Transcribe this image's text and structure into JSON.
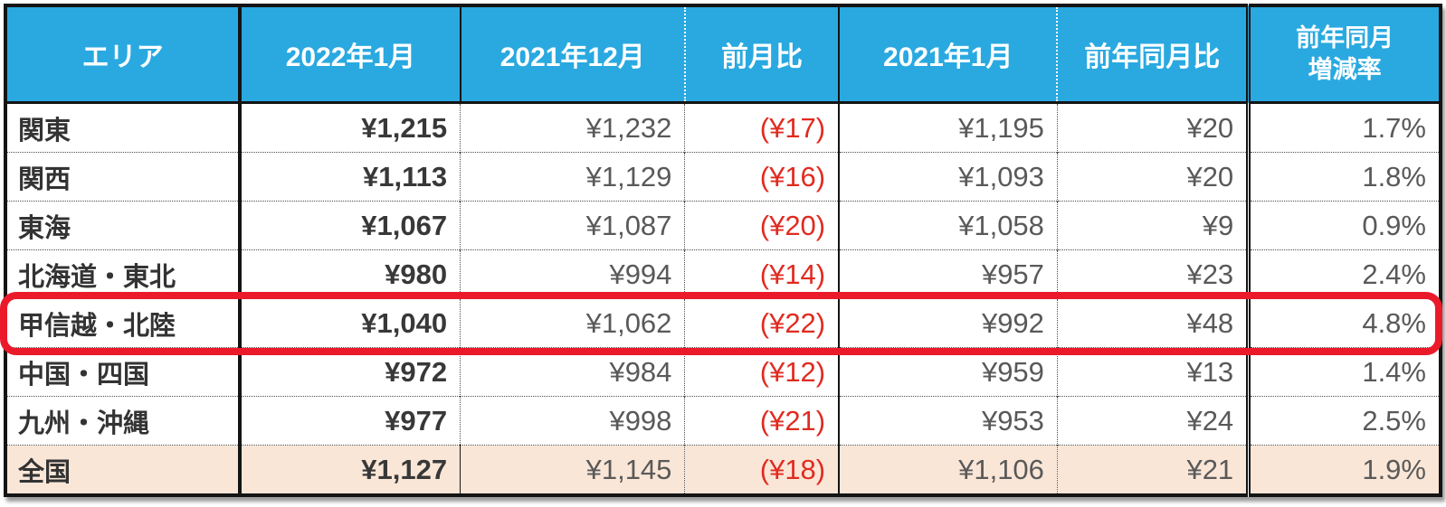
{
  "chart_data": {
    "type": "table",
    "title": "",
    "columns": [
      {
        "id": "area",
        "label": "エリア"
      },
      {
        "id": "jan-2022",
        "label": "2022年1月"
      },
      {
        "id": "dec-2021",
        "label": "2021年12月"
      },
      {
        "id": "mom-diff",
        "label": "前月比"
      },
      {
        "id": "jan-2021",
        "label": "2021年1月"
      },
      {
        "id": "yoy-diff",
        "label": "前年同月比"
      },
      {
        "id": "yoy-rate",
        "label": "前年同月増減率",
        "lines": [
          "前年同月",
          "増減率"
        ]
      }
    ],
    "rows": [
      {
        "cells": [
          "関東",
          "¥1,215",
          "¥1,232",
          "(¥17)",
          "¥1,195",
          "¥20",
          "1.7%"
        ],
        "is_total": false,
        "is_highlighted": false
      },
      {
        "cells": [
          "関西",
          "¥1,113",
          "¥1,129",
          "(¥16)",
          "¥1,093",
          "¥20",
          "1.8%"
        ],
        "is_total": false,
        "is_highlighted": false
      },
      {
        "cells": [
          "東海",
          "¥1,067",
          "¥1,087",
          "(¥20)",
          "¥1,058",
          "¥9",
          "0.9%"
        ],
        "is_total": false,
        "is_highlighted": false
      },
      {
        "cells": [
          "北海道・東北",
          "¥980",
          "¥994",
          "(¥14)",
          "¥957",
          "¥23",
          "2.4%"
        ],
        "is_total": false,
        "is_highlighted": false
      },
      {
        "cells": [
          "甲信越・北陸",
          "¥1,040",
          "¥1,062",
          "(¥22)",
          "¥992",
          "¥48",
          "4.8%"
        ],
        "is_total": false,
        "is_highlighted": true
      },
      {
        "cells": [
          "中国・四国",
          "¥972",
          "¥984",
          "(¥12)",
          "¥959",
          "¥13",
          "1.4%"
        ],
        "is_total": false,
        "is_highlighted": false
      },
      {
        "cells": [
          "九州・沖縄",
          "¥977",
          "¥998",
          "(¥21)",
          "¥953",
          "¥24",
          "2.5%"
        ],
        "is_total": false,
        "is_highlighted": false
      },
      {
        "cells": [
          "全国",
          "¥1,127",
          "¥1,145",
          "(¥18)",
          "¥1,106",
          "¥21",
          "1.9%"
        ],
        "is_total": true,
        "is_highlighted": false
      }
    ],
    "highlight": {
      "row": "甲信越・北陸",
      "style": "red-rounded-outline"
    },
    "colors": {
      "header_bg": "#29A9E0",
      "header_text": "#FFFFFF",
      "total_row_bg": "#FAE6D7",
      "negative_text": "#E02B20",
      "highlight_outline": "#EB1A2B",
      "body_text": "#595959",
      "bold_text": "#383838",
      "border": "#141414"
    },
    "layout": {
      "negative_column_index": 3,
      "bold_column_index": 1,
      "grid": "solid-and-dotted-excel-style",
      "legend_position": "none"
    }
  }
}
